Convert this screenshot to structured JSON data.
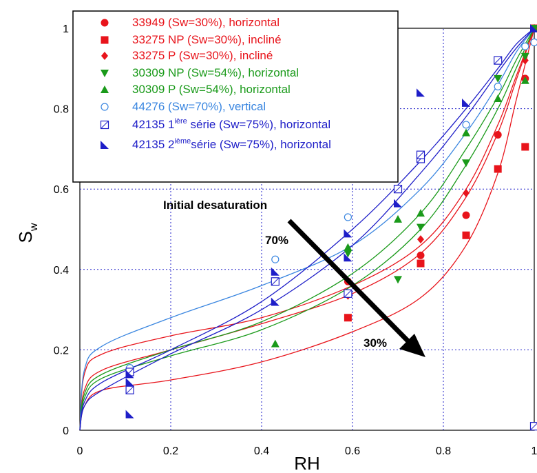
{
  "chart_data": {
    "type": "scatter",
    "title": "",
    "xlabel": "RH",
    "ylabel": "S",
    "ylabel_sub": "w",
    "xlim": [
      0,
      1
    ],
    "ylim": [
      0,
      1
    ],
    "x_ticks": [
      "0",
      "0.2",
      "0.4",
      "0.6",
      "0.8",
      "1"
    ],
    "y_ticks": [
      "0",
      "0.2",
      "0.4",
      "0.6",
      "0.8",
      "1"
    ],
    "grid": true,
    "legend_position": "top-left",
    "annotations": {
      "arrow_label": "Initial desaturation",
      "start_label": "70%",
      "end_label": "30%"
    },
    "series": [
      {
        "name": "33949 (Sw=30%), horizontal",
        "name_parts": [
          "33949 (Sw=30%), horizontal"
        ],
        "marker": "circle",
        "color": "#e8141b",
        "points": [
          [
            0.59,
            0.37
          ],
          [
            0.75,
            0.435
          ],
          [
            0.85,
            0.535
          ],
          [
            0.92,
            0.735
          ],
          [
            0.98,
            0.875
          ],
          [
            1.0,
            1.0
          ]
        ]
      },
      {
        "name": "33275 NP (Sw=30%), incliné",
        "name_parts": [
          "33275 NP (Sw=30%), incliné"
        ],
        "marker": "square",
        "color": "#e8141b",
        "points": [
          [
            0.59,
            0.28
          ],
          [
            0.75,
            0.415
          ],
          [
            0.85,
            0.485
          ],
          [
            0.92,
            0.65
          ],
          [
            0.98,
            0.705
          ],
          [
            1.0,
            1.0
          ]
        ]
      },
      {
        "name": "33275 P (Sw=30%), incliné",
        "name_parts": [
          "33275 P (Sw=30%), incliné"
        ],
        "marker": "diamond",
        "color": "#e8141b",
        "points": [
          [
            0.59,
            0.335
          ],
          [
            0.75,
            0.475
          ],
          [
            0.85,
            0.59
          ],
          [
            0.98,
            0.92
          ],
          [
            1.0,
            1.0
          ]
        ]
      },
      {
        "name": "30309 NP (Sw=54%), horizontal",
        "name_parts": [
          "30309 NP (Sw=54%), horizontal"
        ],
        "marker": "triangle-down",
        "color": "#1a9a1a",
        "points": [
          [
            0.59,
            0.44
          ],
          [
            0.7,
            0.375
          ],
          [
            0.75,
            0.505
          ],
          [
            0.85,
            0.665
          ],
          [
            0.92,
            0.875
          ],
          [
            0.98,
            0.93
          ],
          [
            1.0,
            1.0
          ]
        ]
      },
      {
        "name": "30309 P (Sw=54%), horizontal",
        "name_parts": [
          "30309 P (Sw=54%), horizontal"
        ],
        "marker": "triangle-up",
        "color": "#1a9a1a",
        "points": [
          [
            0.43,
            0.215
          ],
          [
            0.59,
            0.455
          ],
          [
            0.7,
            0.525
          ],
          [
            0.75,
            0.54
          ],
          [
            0.85,
            0.74
          ],
          [
            0.92,
            0.825
          ],
          [
            0.98,
            0.87
          ],
          [
            1.0,
            1.0
          ]
        ]
      },
      {
        "name": "44276 (Sw=70%), vertical",
        "name_parts": [
          "44276 (Sw=70%), vertical"
        ],
        "marker": "circle-open",
        "color": "#3a86e0",
        "points": [
          [
            0.11,
            0.155
          ],
          [
            0.43,
            0.425
          ],
          [
            0.59,
            0.53
          ],
          [
            0.85,
            0.76
          ],
          [
            0.92,
            0.855
          ],
          [
            0.98,
            0.955
          ],
          [
            1.0,
            0.965
          ]
        ]
      },
      {
        "name": "42135 1ière série (Sw=75%), horizontal",
        "name_parts": [
          "42135 1",
          "ière",
          " série (Sw=75%), horizontal"
        ],
        "marker": "square-open",
        "color": "#1e1ec8",
        "points": [
          [
            0.11,
            0.1
          ],
          [
            0.11,
            0.145
          ],
          [
            0.43,
            0.37
          ],
          [
            0.59,
            0.34
          ],
          [
            0.7,
            0.6
          ],
          [
            0.75,
            0.675
          ],
          [
            0.75,
            0.685
          ],
          [
            0.92,
            0.92
          ],
          [
            1.0,
            0.01
          ]
        ]
      },
      {
        "name": "42135 2ième série (Sw=75%), horizontal",
        "name_parts": [
          "42135 2",
          "ième",
          "série (Sw=75%), horizontal"
        ],
        "marker": "half-triangle",
        "color": "#1e1ec8",
        "points": [
          [
            0.11,
            0.04
          ],
          [
            0.11,
            0.12
          ],
          [
            0.11,
            0.14
          ],
          [
            0.43,
            0.32
          ],
          [
            0.43,
            0.395
          ],
          [
            0.59,
            0.43
          ],
          [
            0.59,
            0.49
          ],
          [
            0.7,
            0.565
          ],
          [
            0.75,
            0.84
          ],
          [
            0.85,
            0.815
          ],
          [
            1.0,
            1.0
          ]
        ]
      }
    ],
    "fit_curves": [
      {
        "color": "#e8141b",
        "points": [
          [
            0.0,
            0.0
          ],
          [
            0.01,
            0.06
          ],
          [
            0.05,
            0.1
          ],
          [
            0.2,
            0.125
          ],
          [
            0.4,
            0.17
          ],
          [
            0.6,
            0.245
          ],
          [
            0.75,
            0.33
          ],
          [
            0.85,
            0.46
          ],
          [
            0.92,
            0.64
          ],
          [
            0.96,
            0.82
          ],
          [
            1.0,
            1.0
          ]
        ]
      },
      {
        "color": "#e8141b",
        "points": [
          [
            0.0,
            0.0
          ],
          [
            0.01,
            0.1
          ],
          [
            0.05,
            0.15
          ],
          [
            0.2,
            0.2
          ],
          [
            0.4,
            0.265
          ],
          [
            0.6,
            0.34
          ],
          [
            0.75,
            0.44
          ],
          [
            0.85,
            0.58
          ],
          [
            0.92,
            0.74
          ],
          [
            0.96,
            0.87
          ],
          [
            1.0,
            1.0
          ]
        ]
      },
      {
        "color": "#e8141b",
        "points": [
          [
            0.0,
            0.0
          ],
          [
            0.01,
            0.14
          ],
          [
            0.05,
            0.19
          ],
          [
            0.2,
            0.235
          ],
          [
            0.4,
            0.28
          ],
          [
            0.6,
            0.36
          ],
          [
            0.75,
            0.46
          ],
          [
            0.85,
            0.6
          ],
          [
            0.92,
            0.76
          ],
          [
            0.96,
            0.88
          ],
          [
            1.0,
            1.0
          ]
        ]
      },
      {
        "color": "#1a9a1a",
        "points": [
          [
            0.0,
            0.0
          ],
          [
            0.01,
            0.08
          ],
          [
            0.05,
            0.13
          ],
          [
            0.2,
            0.185
          ],
          [
            0.4,
            0.25
          ],
          [
            0.6,
            0.36
          ],
          [
            0.75,
            0.5
          ],
          [
            0.85,
            0.66
          ],
          [
            0.92,
            0.8
          ],
          [
            0.96,
            0.9
          ],
          [
            1.0,
            1.0
          ]
        ]
      },
      {
        "color": "#1a9a1a",
        "points": [
          [
            0.0,
            0.0
          ],
          [
            0.01,
            0.09
          ],
          [
            0.05,
            0.14
          ],
          [
            0.2,
            0.2
          ],
          [
            0.4,
            0.27
          ],
          [
            0.6,
            0.39
          ],
          [
            0.75,
            0.54
          ],
          [
            0.85,
            0.7
          ],
          [
            0.92,
            0.83
          ],
          [
            0.96,
            0.92
          ],
          [
            1.0,
            1.0
          ]
        ]
      },
      {
        "color": "#3a86e0",
        "points": [
          [
            0.0,
            0.0
          ],
          [
            0.01,
            0.15
          ],
          [
            0.05,
            0.21
          ],
          [
            0.2,
            0.28
          ],
          [
            0.4,
            0.36
          ],
          [
            0.6,
            0.46
          ],
          [
            0.75,
            0.6
          ],
          [
            0.85,
            0.74
          ],
          [
            0.92,
            0.86
          ],
          [
            0.96,
            0.94
          ],
          [
            1.0,
            1.0
          ]
        ]
      },
      {
        "color": "#1e1ec8",
        "points": [
          [
            0.0,
            0.0
          ],
          [
            0.01,
            0.06
          ],
          [
            0.05,
            0.1
          ],
          [
            0.2,
            0.19
          ],
          [
            0.4,
            0.3
          ],
          [
            0.6,
            0.46
          ],
          [
            0.75,
            0.64
          ],
          [
            0.85,
            0.78
          ],
          [
            0.92,
            0.89
          ],
          [
            0.96,
            0.95
          ],
          [
            1.0,
            1.0
          ]
        ]
      },
      {
        "color": "#1e1ec8",
        "points": [
          [
            0.0,
            0.0
          ],
          [
            0.01,
            0.07
          ],
          [
            0.05,
            0.12
          ],
          [
            0.2,
            0.2
          ],
          [
            0.4,
            0.32
          ],
          [
            0.6,
            0.5
          ],
          [
            0.75,
            0.67
          ],
          [
            0.85,
            0.8
          ],
          [
            0.92,
            0.9
          ],
          [
            0.96,
            0.96
          ],
          [
            1.0,
            1.0
          ]
        ]
      }
    ]
  }
}
